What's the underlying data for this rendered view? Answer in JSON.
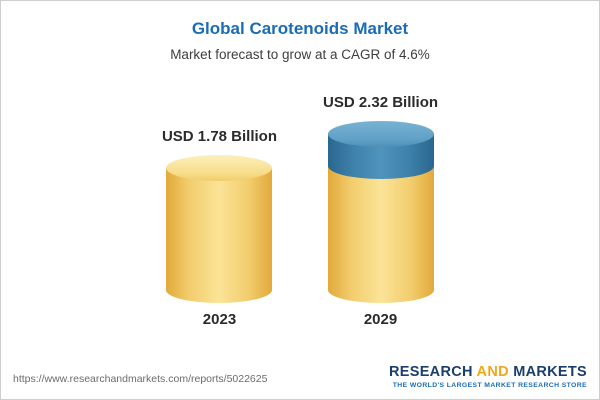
{
  "header": {
    "title": "Global Carotenoids Market",
    "subtitle": "Market forecast to grow at a CAGR of 4.6%"
  },
  "chart_data": {
    "type": "bar",
    "categories": [
      "2023",
      "2029"
    ],
    "values": [
      1.78,
      2.32
    ],
    "value_labels": [
      "USD 1.78 Billion",
      "USD 2.32 Billion"
    ],
    "unit": "USD Billion",
    "title": "Global Carotenoids Market",
    "subtitle": "Market forecast to grow at a CAGR of 4.6%",
    "cagr": "4.6%",
    "legend_position": "none",
    "grid": false,
    "colors": {
      "bar": "#f2cd6e",
      "growth_segment": "#4f94bd",
      "title": "#1a6cb5"
    },
    "notes": "2029 bar shows growth portion above 2023 level as a blue cylinder cap segment"
  },
  "footer": {
    "url": "https://www.researchandmarkets.com/reports/5022625",
    "logo": {
      "part1": "RESEARCH ",
      "part2": "AND",
      "part3": " MARKETS",
      "tagline": "THE WORLD'S LARGEST MARKET RESEARCH STORE"
    }
  }
}
